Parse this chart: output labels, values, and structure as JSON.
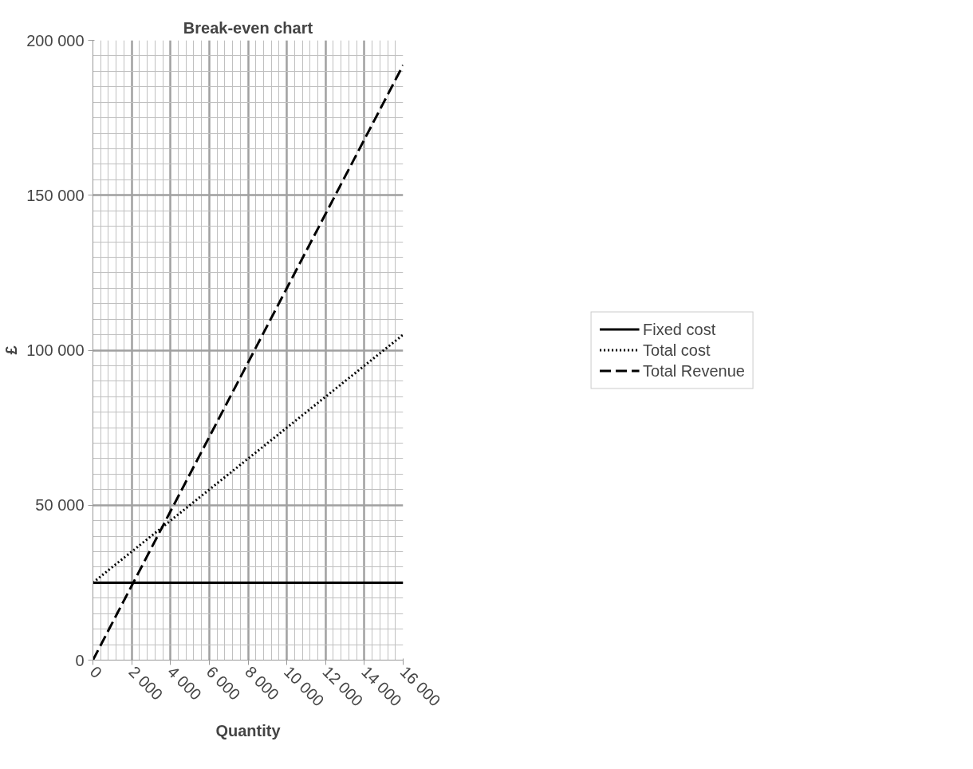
{
  "chart_data": {
    "type": "line",
    "title": "Break-even chart",
    "xlabel": "Quantity",
    "ylabel": "£",
    "x": [
      0,
      2000,
      4000,
      6000,
      8000,
      10000,
      12000,
      14000,
      16000
    ],
    "series": [
      {
        "name": "Fixed cost",
        "color": "#000000",
        "line_style": "solid",
        "values": [
          25000,
          25000,
          25000,
          25000,
          25000,
          25000,
          25000,
          25000,
          25000
        ]
      },
      {
        "name": "Total cost",
        "color": "#000000",
        "line_style": "dotted",
        "values": [
          25000,
          35000,
          45000,
          55000,
          65000,
          75000,
          85000,
          95000,
          105000
        ]
      },
      {
        "name": "Total Revenue",
        "color": "#000000",
        "line_style": "dashed",
        "values": [
          0,
          24000,
          48000,
          72000,
          96000,
          120000,
          144000,
          168000,
          192000
        ]
      }
    ],
    "xlim": [
      0,
      16000
    ],
    "ylim": [
      0,
      200000
    ],
    "xticks": [
      0,
      {
        "value": 2000,
        "label": "2 000"
      },
      {
        "value": 4000,
        "label": "4 000"
      },
      {
        "value": 6000,
        "label": "6 000"
      },
      {
        "value": 8000,
        "label": "8 000"
      },
      {
        "value": 10000,
        "label": "10 000"
      },
      {
        "value": 12000,
        "label": "12 000"
      },
      {
        "value": 14000,
        "label": "14 000"
      },
      {
        "value": 16000,
        "label": "16 000"
      }
    ],
    "yticks": [
      0,
      {
        "value": 50000,
        "label": "50 000"
      },
      {
        "value": 100000,
        "label": "100 000"
      },
      {
        "value": 150000,
        "label": "150 000"
      },
      {
        "value": 200000,
        "label": "200 000"
      }
    ],
    "grid": true,
    "legend": "right",
    "marker": "none"
  }
}
